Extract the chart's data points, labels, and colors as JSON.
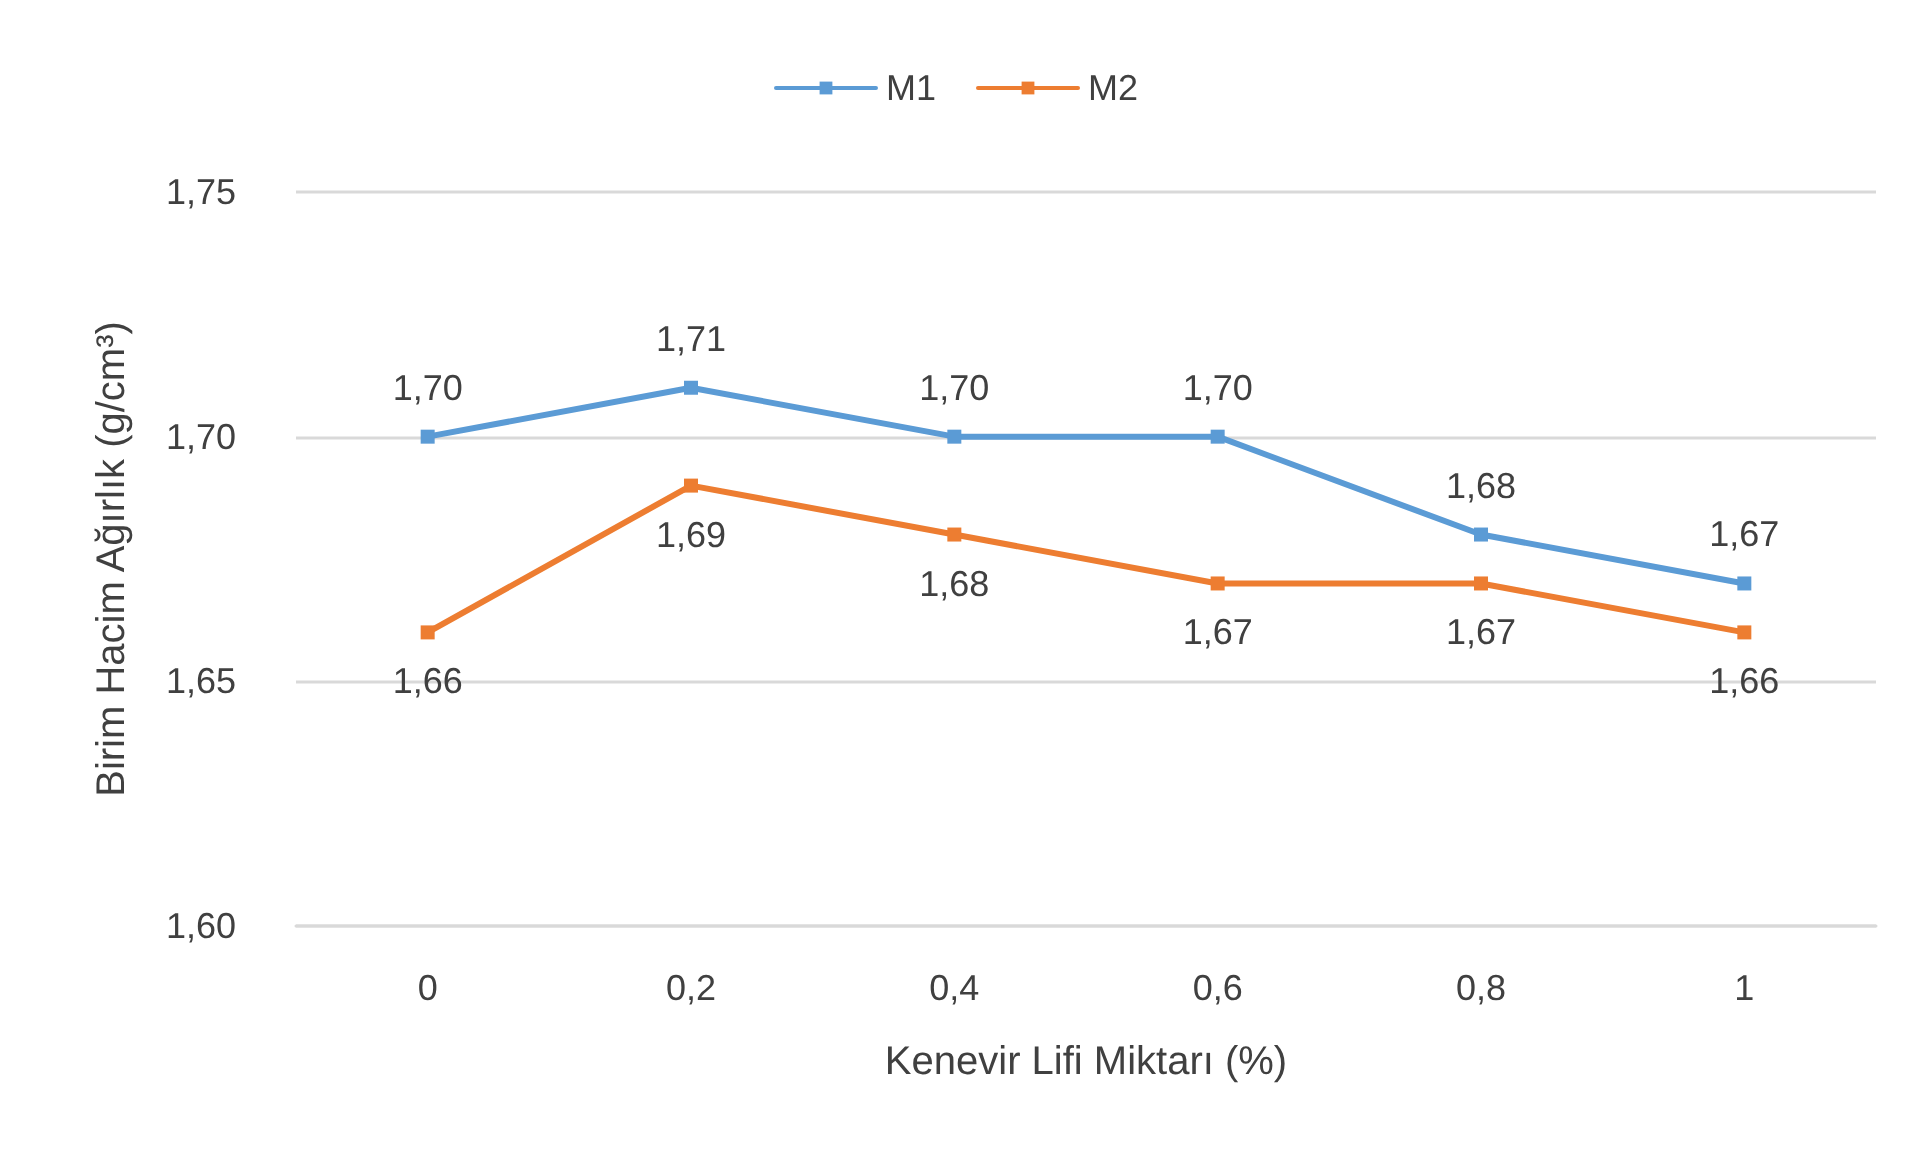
{
  "chart_data": {
    "type": "line",
    "xlabel": "Kenevir Lifi Miktarı (%)",
    "ylabel": "Birim Hacim Ağırlık (g/cm³)",
    "categories": [
      "0",
      "0,2",
      "0,4",
      "0,6",
      "0,8",
      "1"
    ],
    "series": [
      {
        "name": "M1",
        "color": "#5b9bd5",
        "values": [
          1.7,
          1.71,
          1.7,
          1.7,
          1.68,
          1.67
        ],
        "value_labels": [
          "1,70",
          "1,71",
          "1,70",
          "1,70",
          "1,68",
          "1,67"
        ]
      },
      {
        "name": "M2",
        "color": "#ed7d31",
        "values": [
          1.66,
          1.69,
          1.68,
          1.67,
          1.67,
          1.66
        ],
        "value_labels": [
          "1,66",
          "1,69",
          "1,68",
          "1,67",
          "1,67",
          "1,66"
        ]
      }
    ],
    "ylim": [
      1.6,
      1.75
    ],
    "yticks": [
      {
        "value": 1.6,
        "label": "1,60"
      },
      {
        "value": 1.65,
        "label": "1,65"
      },
      {
        "value": 1.7,
        "label": "1,70"
      },
      {
        "value": 1.75,
        "label": "1,75"
      }
    ],
    "grid": "y",
    "legend": "top",
    "marker": "square",
    "line_style": "solid"
  }
}
